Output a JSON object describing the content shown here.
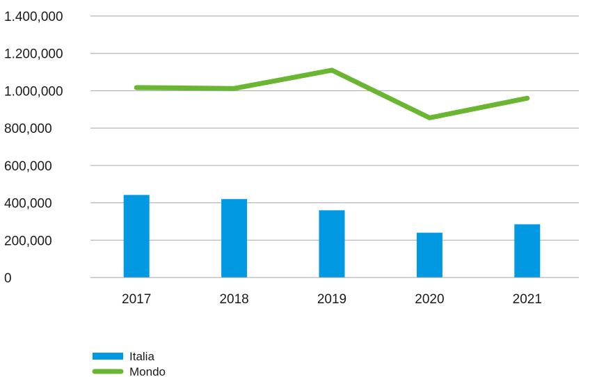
{
  "chart_data": {
    "type": "bar",
    "title": "",
    "xlabel": "",
    "ylabel": "",
    "categories": [
      "2017",
      "2018",
      "2019",
      "2020",
      "2021"
    ],
    "ylim": [
      0,
      1400000
    ],
    "yticks": [
      0,
      200000,
      400000,
      600000,
      800000,
      1000000,
      1200000,
      1400000
    ],
    "ytick_labels": [
      "0",
      "200,000",
      "400,000",
      "600,000",
      "800,000",
      "1.000,000",
      "1.200,000",
      "1.400,000"
    ],
    "grid": true,
    "legend_position": "bottom-left",
    "series": [
      {
        "name": "Italia",
        "kind": "bar",
        "color": "#0199e2",
        "values": [
          442000,
          420000,
          360000,
          240000,
          285000
        ]
      },
      {
        "name": "Mondo",
        "kind": "line",
        "color": "#6ab633",
        "values": [
          1017000,
          1012000,
          1110000,
          855000,
          960000
        ]
      }
    ]
  }
}
